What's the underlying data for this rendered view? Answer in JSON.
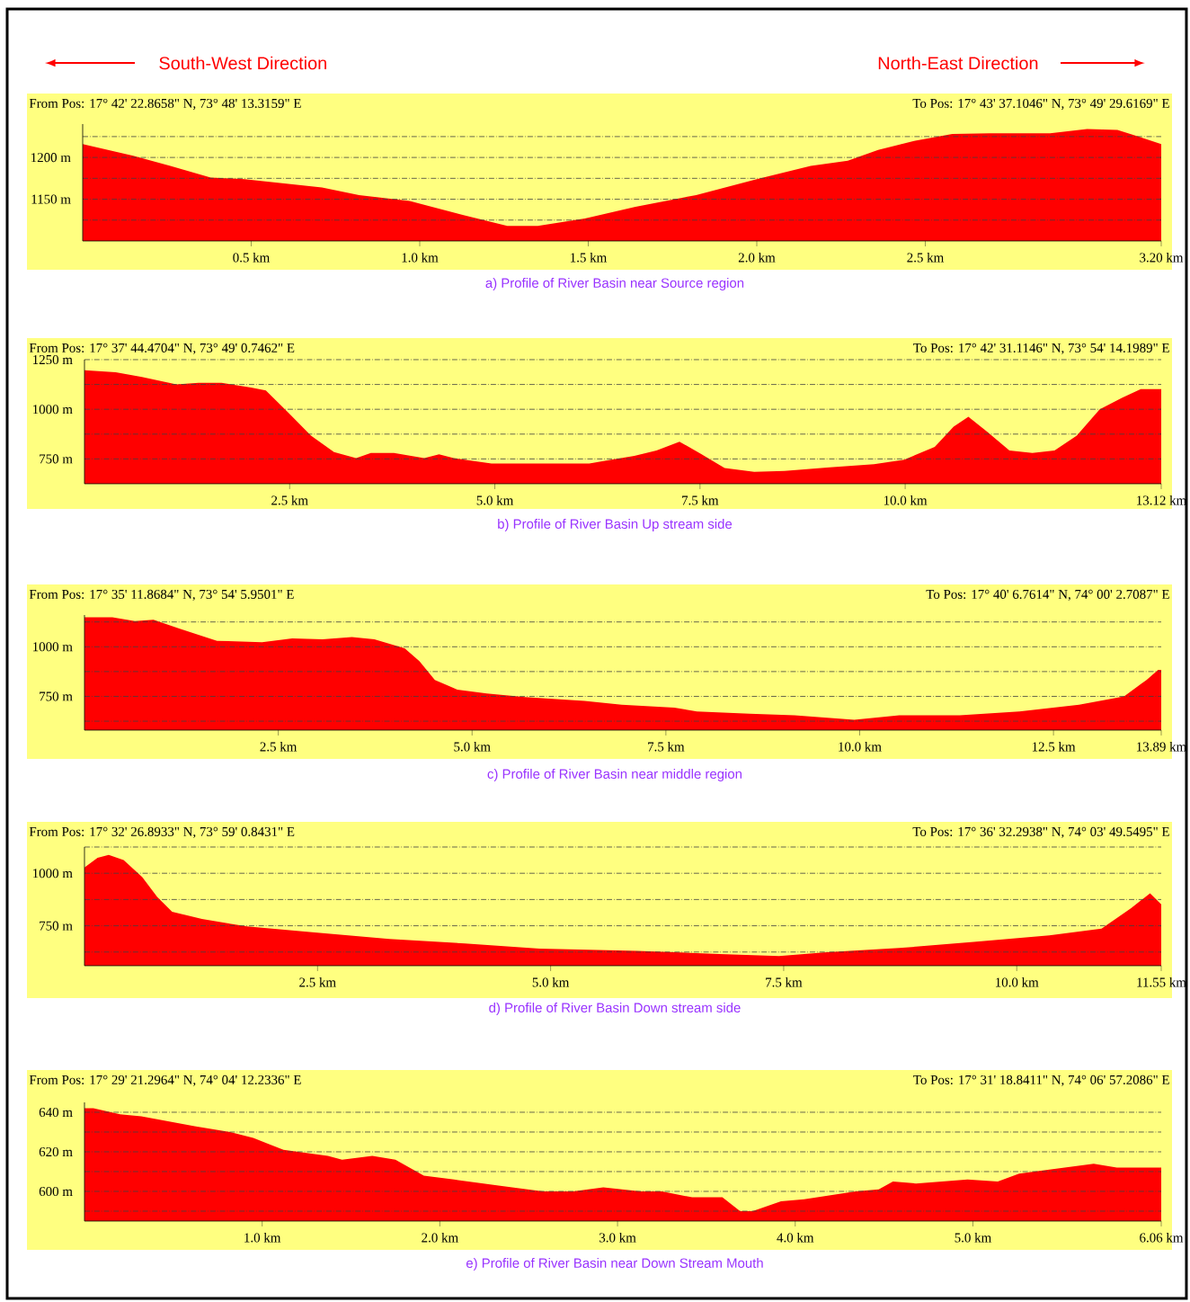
{
  "chart_data": [
    {
      "type": "area",
      "title": "a) Profile of River Basin near Source region",
      "color": "#ff0000",
      "grid": "y",
      "annotations": [
        "South-West Direction",
        "North-East Direction",
        "From Pos: 17° 42' 22.8658\" N, 73° 48' 13.3159\" E",
        "To Pos: 17° 43' 37.1046\" N, 73° 49' 29.6169\" E"
      ],
      "xlim": [
        0,
        3.2
      ],
      "ylim": [
        1100,
        1240
      ],
      "xticks": [
        {
          "value": 0.5,
          "label": "0.5 km"
        },
        {
          "value": 1.0,
          "label": "1.0 km"
        },
        {
          "value": 1.5,
          "label": "1.5 km"
        },
        {
          "value": 2.0,
          "label": "2.0 km"
        },
        {
          "value": 2.5,
          "label": "2.5 km"
        },
        {
          "value": 3.2,
          "label": "3.20 km"
        }
      ],
      "yticks": [
        {
          "value": 1125,
          "label": null
        },
        {
          "value": 1150,
          "label": "1150 m"
        },
        {
          "value": 1175,
          "label": null
        },
        {
          "value": 1200,
          "label": "1200 m"
        },
        {
          "value": 1225,
          "label": null
        }
      ],
      "x": [
        0,
        0.15,
        0.26,
        0.38,
        0.48,
        0.71,
        0.82,
        0.97,
        1.13,
        1.26,
        1.35,
        1.49,
        1.64,
        1.82,
        2.0,
        2.16,
        2.27,
        2.36,
        2.47,
        2.58,
        2.69,
        2.87,
        2.98,
        3.07,
        3.14,
        3.2
      ],
      "values": [
        1216,
        1202,
        1190,
        1176,
        1174,
        1164,
        1155,
        1148,
        1131,
        1118,
        1118,
        1127,
        1141,
        1155,
        1174,
        1190,
        1196,
        1209,
        1220,
        1228,
        1229,
        1229,
        1234,
        1233,
        1224,
        1216
      ]
    },
    {
      "type": "area",
      "title": "b) Profile of River Basin Up stream side",
      "color": "#ff0000",
      "grid": "y",
      "annotations": [
        "From Pos: 17° 37' 44.4704\" N, 73° 49' 0.7462\" E",
        "To Pos: 17° 42' 31.1146\" N, 73° 54' 14.1989\" E"
      ],
      "xlim": [
        0,
        13.12
      ],
      "ylim": [
        625,
        1250
      ],
      "xticks": [
        {
          "value": 2.5,
          "label": "2.5 km"
        },
        {
          "value": 5.0,
          "label": "5.0 km"
        },
        {
          "value": 7.5,
          "label": "7.5 km"
        },
        {
          "value": 10.0,
          "label": "10.0 km"
        },
        {
          "value": 13.12,
          "label": "13.12 km"
        }
      ],
      "yticks": [
        {
          "value": 750,
          "label": "750 m"
        },
        {
          "value": 875,
          "label": null
        },
        {
          "value": 1000,
          "label": "1000 m"
        },
        {
          "value": 1125,
          "label": null
        },
        {
          "value": 1250,
          "label": "1250 m"
        }
      ],
      "x": [
        0,
        0.38,
        0.7,
        1.12,
        1.39,
        1.67,
        2.03,
        2.21,
        2.49,
        2.76,
        3.04,
        3.31,
        3.49,
        3.77,
        4.14,
        4.32,
        4.5,
        4.96,
        5.42,
        6.15,
        6.42,
        6.7,
        6.97,
        7.25,
        7.52,
        7.8,
        8.16,
        8.53,
        9.08,
        9.62,
        9.99,
        10.36,
        10.59,
        10.77,
        11.0,
        11.27,
        11.55,
        11.82,
        12.09,
        12.37,
        12.64,
        12.87,
        13.12
      ],
      "values": [
        1197,
        1186,
        1163,
        1125,
        1133,
        1133,
        1110,
        1095,
        981,
        867,
        784,
        754,
        780,
        780,
        754,
        773,
        754,
        727,
        727,
        727,
        746,
        765,
        792,
        837,
        773,
        704,
        685,
        689,
        708,
        723,
        746,
        811,
        913,
        962,
        886,
        792,
        780,
        792,
        867,
        1000,
        1057,
        1102,
        1102
      ]
    },
    {
      "type": "area",
      "title": "c) Profile of River Basin near middle region",
      "color": "#ff0000",
      "grid": "y",
      "annotations": [
        "From Pos: 17° 35' 11.8684\" N, 73° 54' 5.9501\" E",
        "To Pos: 17° 40' 6.7614\" N, 74° 00' 2.7087\" E"
      ],
      "xlim": [
        0,
        13.89
      ],
      "ylim": [
        580,
        1160
      ],
      "xticks": [
        {
          "value": 2.5,
          "label": "2.5 km"
        },
        {
          "value": 5.0,
          "label": "5.0 km"
        },
        {
          "value": 7.5,
          "label": "7.5 km"
        },
        {
          "value": 10.0,
          "label": "10.0 km"
        },
        {
          "value": 12.5,
          "label": "12.5 km"
        },
        {
          "value": 13.89,
          "label": "13.89 km"
        }
      ],
      "yticks": [
        {
          "value": 625,
          "label": null
        },
        {
          "value": 750,
          "label": "750 m"
        },
        {
          "value": 875,
          "label": null
        },
        {
          "value": 1000,
          "label": "1000 m"
        },
        {
          "value": 1125,
          "label": null
        }
      ],
      "x": [
        0,
        0.36,
        0.65,
        0.89,
        1.23,
        1.71,
        2.29,
        2.68,
        3.07,
        3.45,
        3.74,
        4.13,
        4.32,
        4.52,
        4.81,
        5.19,
        5.68,
        6.45,
        6.93,
        7.61,
        7.9,
        8.58,
        9.16,
        9.93,
        10.51,
        11.29,
        12.06,
        12.83,
        13.41,
        13.7,
        13.85,
        13.89
      ],
      "values": [
        1148,
        1148,
        1129,
        1136,
        1091,
        1030,
        1023,
        1042,
        1038,
        1049,
        1038,
        992,
        928,
        833,
        784,
        765,
        746,
        727,
        708,
        693,
        674,
        663,
        655,
        632,
        655,
        655,
        674,
        708,
        750,
        833,
        883,
        883
      ]
    },
    {
      "type": "area",
      "title": "d) Profile of River Basin Down stream side",
      "color": "#ff0000",
      "grid": "y",
      "annotations": [
        "From Pos: 17° 32' 26.8933\" N, 73° 59' 0.8431\" E",
        "To Pos: 17° 36' 32.2938\" N, 74° 03' 49.5495\" E"
      ],
      "xlim": [
        0,
        11.55
      ],
      "ylim": [
        560,
        1125
      ],
      "xticks": [
        {
          "value": 2.5,
          "label": "2.5 km"
        },
        {
          "value": 5.0,
          "label": "5.0 km"
        },
        {
          "value": 7.5,
          "label": "7.5 km"
        },
        {
          "value": 10.0,
          "label": "10.0 km"
        },
        {
          "value": 11.55,
          "label": "11.55 km"
        }
      ],
      "yticks": [
        {
          "value": 625,
          "label": null
        },
        {
          "value": 750,
          "label": "750 m"
        },
        {
          "value": 875,
          "label": null
        },
        {
          "value": 1000,
          "label": "1000 m"
        },
        {
          "value": 1125,
          "label": null
        }
      ],
      "x": [
        0,
        0.14,
        0.26,
        0.42,
        0.62,
        0.78,
        0.94,
        1.26,
        1.74,
        2.47,
        3.27,
        4.08,
        4.88,
        5.92,
        6.81,
        7.45,
        7.93,
        8.74,
        9.54,
        10.35,
        10.91,
        11.23,
        11.43,
        11.55
      ],
      "values": [
        1028,
        1074,
        1088,
        1063,
        982,
        887,
        817,
        782,
        747,
        718,
        687,
        666,
        641,
        630,
        616,
        606,
        623,
        644,
        673,
        704,
        736,
        835,
        905,
        852
      ]
    },
    {
      "type": "area",
      "title": "e) Profile of River Basin near Down Stream Mouth",
      "color": "#ff0000",
      "grid": "y",
      "annotations": [
        "From Pos: 17° 29' 21.2964\" N, 74° 04' 12.2336\" E",
        "To Pos: 17° 31' 18.8411\" N, 74° 06' 57.2086\" E"
      ],
      "xlim": [
        0,
        6.06
      ],
      "ylim": [
        585,
        645
      ],
      "xticks": [
        {
          "value": 1.0,
          "label": "1.0 km"
        },
        {
          "value": 2.0,
          "label": "2.0 km"
        },
        {
          "value": 3.0,
          "label": "3.0 km"
        },
        {
          "value": 4.0,
          "label": "4.0 km"
        },
        {
          "value": 5.0,
          "label": "5.0 km"
        },
        {
          "value": 6.06,
          "label": "6.06 km"
        }
      ],
      "yticks": [
        {
          "value": 590,
          "label": null
        },
        {
          "value": 600,
          "label": "600 m"
        },
        {
          "value": 610,
          "label": null
        },
        {
          "value": 620,
          "label": "620 m"
        },
        {
          "value": 630,
          "label": null
        },
        {
          "value": 640,
          "label": "640 m"
        }
      ],
      "x": [
        0,
        0.05,
        0.2,
        0.32,
        0.62,
        0.82,
        0.95,
        1.12,
        1.37,
        1.45,
        1.62,
        1.75,
        1.91,
        2.08,
        2.33,
        2.58,
        2.75,
        2.92,
        3.13,
        3.25,
        3.42,
        3.59,
        3.69,
        3.76,
        3.92,
        4.05,
        4.34,
        4.47,
        4.55,
        4.68,
        4.97,
        5.14,
        5.26,
        5.43,
        5.68,
        5.81,
        6.06
      ],
      "values": [
        642,
        642,
        639,
        638,
        633,
        630,
        627,
        621,
        618,
        616,
        618,
        616,
        608,
        606,
        603,
        600,
        600,
        602,
        600,
        600,
        597,
        597,
        590,
        590,
        595,
        596,
        600,
        601,
        605,
        604,
        606,
        605,
        609,
        611,
        614,
        612,
        612
      ]
    }
  ]
}
